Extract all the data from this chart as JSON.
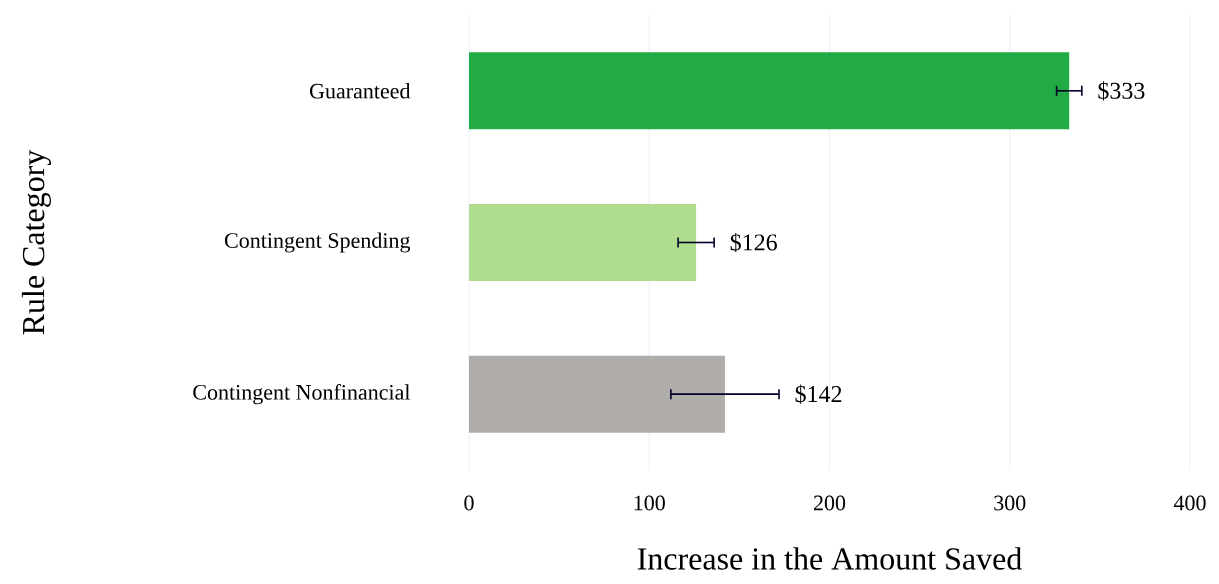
{
  "chart_data": {
    "type": "bar",
    "orientation": "horizontal",
    "xlabel": "Increase in the Amount Saved",
    "ylabel": "Rule Category",
    "categories": [
      "Guaranteed",
      "Contingent Spending",
      "Contingent Nonfinancial"
    ],
    "values": [
      333,
      126,
      142
    ],
    "errors": [
      7,
      10,
      30
    ],
    "value_labels": [
      "$333",
      "$126",
      "$142"
    ],
    "colors": [
      "#22aa44",
      "#b0dc90",
      "#b0acaa"
    ],
    "xlim": [
      0,
      400
    ],
    "xticks": [
      0,
      100,
      200,
      300,
      400
    ],
    "grid": "x"
  }
}
